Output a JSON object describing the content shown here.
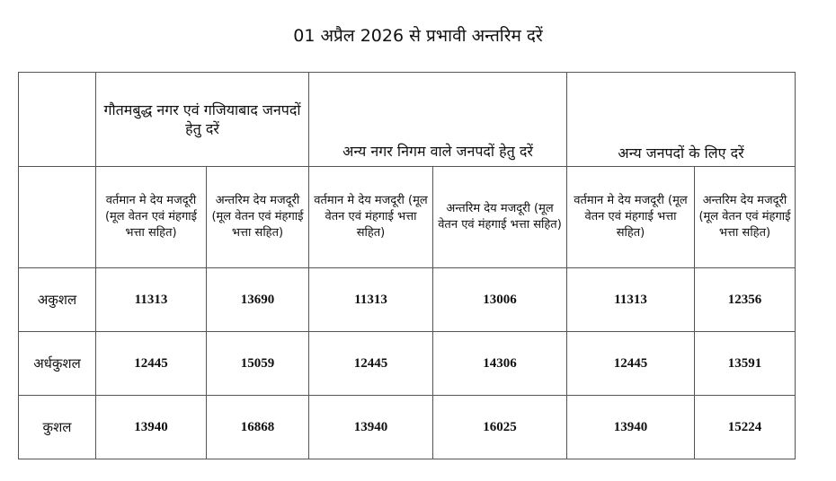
{
  "title": "01 अप्रैल 2026 से प्रभावी अन्तरिम दरें",
  "groups": [
    {
      "label": "गौतमबुद्ध नगर एवं गजियाबाद जनपदों हेतु दरें"
    },
    {
      "label": "अन्य नगर निगम वाले जनपदों हेतु दरें"
    },
    {
      "label": "अन्य जनपदों के लिए दरें"
    }
  ],
  "subheaders": [
    "वर्तमान मे देय मजदूरी (मूल वेतन एवं मंहगाई भत्ता सहित)",
    "अन्तरिम देय मजदूरी (मूल वेतन एवं मंहगाई भत्ता सहित)",
    "वर्तमान मे देय मजदूरी (मूल वेतन एवं मंहगाई भत्ता सहित)",
    "अन्तरिम देय मजदूरी (मूल वेतन एवं मंहगाई भत्ता सहित)",
    "वर्तमान मे देय मजदूरी (मूल वेतन एवं मंहगाई भत्ता सहित)",
    "अन्तरिम देय मजदूरी (मूल वेतन एवं मंहगाई भत्ता सहित)"
  ],
  "rows": [
    {
      "label": "अकुशल",
      "values": [
        "11313",
        "13690",
        "11313",
        "13006",
        "11313",
        "12356"
      ]
    },
    {
      "label": "अर्धकुशल",
      "values": [
        "12445",
        "15059",
        "12445",
        "14306",
        "12445",
        "13591"
      ]
    },
    {
      "label": "कुशल",
      "values": [
        "13940",
        "16868",
        "13940",
        "16025",
        "13940",
        "15224"
      ]
    }
  ]
}
